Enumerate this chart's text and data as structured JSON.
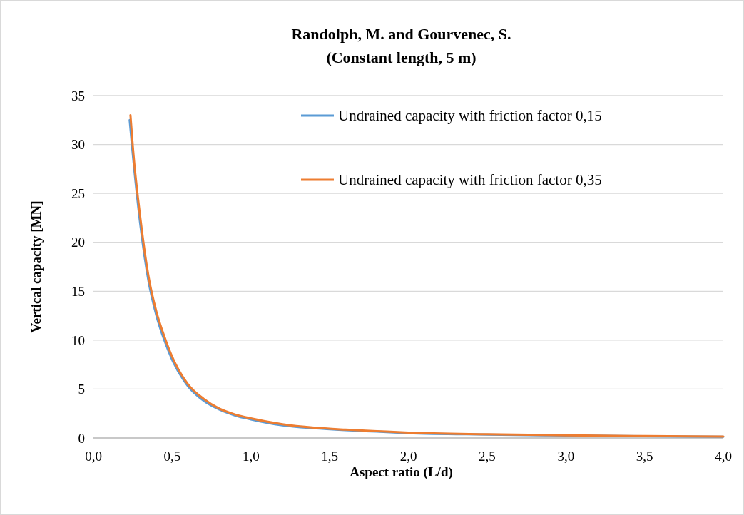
{
  "chart_data": {
    "type": "line",
    "title": "Randolph, M. and Gourvenec, S.",
    "subtitle": "(Constant length, 5 m)",
    "xlabel": "Aspect ratio (L/d)",
    "ylabel": "Vertical capacity [MN]",
    "xlim": [
      0,
      4
    ],
    "xticks": [
      {
        "value": 0,
        "label": "0,0"
      },
      {
        "value": 0.5,
        "label": "0,5"
      },
      {
        "value": 1,
        "label": "1,0"
      },
      {
        "value": 1.5,
        "label": "1,5"
      },
      {
        "value": 2,
        "label": "2,0"
      },
      {
        "value": 2.5,
        "label": "2,5"
      },
      {
        "value": 3,
        "label": "3,0"
      },
      {
        "value": 3.5,
        "label": "3,5"
      },
      {
        "value": 4,
        "label": "4,0"
      }
    ],
    "ylim": [
      0,
      35
    ],
    "yticks": [
      0,
      5,
      10,
      15,
      20,
      25,
      30,
      35
    ],
    "grid": "y",
    "legend": "top right",
    "line_style": "solid",
    "marker": "none",
    "series": [
      {
        "name": "Undrained capacity with friction factor 0,15",
        "color": "#5b9bd5",
        "x": [
          0.23,
          0.25,
          0.3,
          0.35,
          0.4,
          0.45,
          0.5,
          0.6,
          0.7,
          0.8,
          0.9,
          1.0,
          1.2,
          1.4,
          1.6,
          1.8,
          2.0,
          2.5,
          3.0,
          3.5,
          4.0
        ],
        "values": [
          32.5,
          29,
          21.5,
          16,
          12.5,
          10,
          8.0,
          5.3,
          3.8,
          2.9,
          2.3,
          1.9,
          1.3,
          1.0,
          0.8,
          0.65,
          0.5,
          0.35,
          0.25,
          0.18,
          0.13
        ]
      },
      {
        "name": "Undrained capacity with friction factor 0,35",
        "color": "#ed7d31",
        "x": [
          0.235,
          0.25,
          0.3,
          0.35,
          0.4,
          0.45,
          0.5,
          0.6,
          0.7,
          0.8,
          0.9,
          1.0,
          1.2,
          1.4,
          1.6,
          1.8,
          2.0,
          2.5,
          3.0,
          3.5,
          4.0
        ],
        "values": [
          33,
          29.8,
          22.2,
          16.5,
          12.9,
          10.4,
          8.3,
          5.5,
          4.0,
          3.0,
          2.4,
          2.0,
          1.4,
          1.05,
          0.85,
          0.7,
          0.55,
          0.38,
          0.28,
          0.2,
          0.15
        ]
      }
    ]
  }
}
